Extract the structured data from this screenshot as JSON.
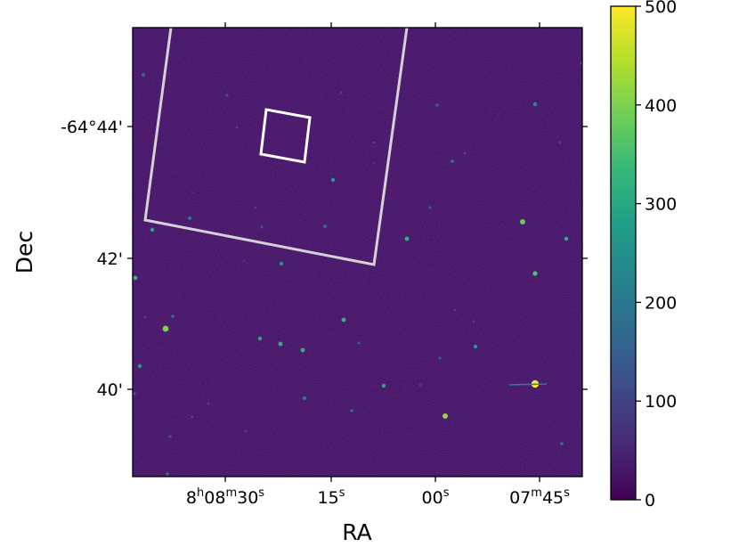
{
  "chart_data": {
    "type": "heatmap",
    "title": "",
    "xlabel": "RA",
    "ylabel": "Dec",
    "x_tick_labels": [
      {
        "pre": "8",
        "sup1": "h",
        "mid": "08",
        "sup2": "m",
        "post": "30",
        "sup3": "s"
      },
      {
        "pre": "15",
        "sup1": "s"
      },
      {
        "pre": "00",
        "sup1": "s"
      },
      {
        "pre": "07",
        "sup1": "m",
        "mid": "45",
        "sup2": "s"
      }
    ],
    "y_tick_labels": [
      "-64°44'",
      "42'",
      "40'"
    ],
    "colorbar": {
      "colormap": "viridis",
      "vmin": 0,
      "vmax": 500,
      "ticks": [
        0,
        100,
        200,
        300,
        400,
        500
      ]
    },
    "background_value": 30,
    "colors": {
      "low": "#440154",
      "high": "#fde725",
      "overlay_outer": "#d3d3d3",
      "overlay_inner": "#ffffff"
    },
    "grid": false,
    "overlays": [
      {
        "name": "outer-footprint",
        "shape": "rotated-square"
      },
      {
        "name": "inner-footprint",
        "shape": "rotated-square"
      }
    ]
  }
}
